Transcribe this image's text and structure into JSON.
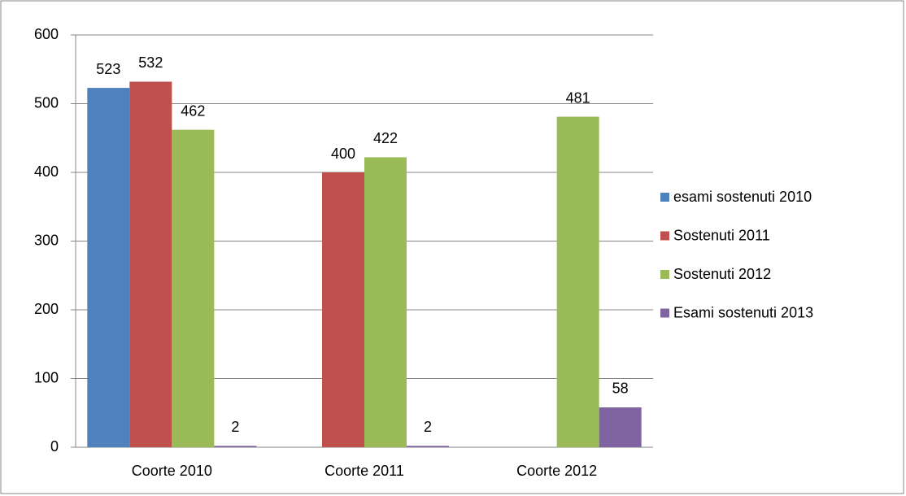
{
  "chart_data": {
    "type": "bar",
    "categories": [
      "Coorte 2010",
      "Coorte 2011",
      "Coorte 2012"
    ],
    "series": [
      {
        "name": "esami sostenuti 2010",
        "color": "#4f81bd",
        "values": [
          523,
          null,
          null
        ]
      },
      {
        "name": "Sostenuti 2011",
        "color": "#c0504d",
        "values": [
          532,
          400,
          null
        ]
      },
      {
        "name": "Sostenuti 2012",
        "color": "#9bbb59",
        "values": [
          462,
          422,
          481
        ]
      },
      {
        "name": "Esami sostenuti 2013",
        "color": "#8064a2",
        "values": [
          2,
          2,
          58
        ]
      }
    ],
    "ylim": [
      0,
      600
    ],
    "yticks": [
      0,
      100,
      200,
      300,
      400,
      500,
      600
    ],
    "grid": true,
    "legend": "right"
  }
}
